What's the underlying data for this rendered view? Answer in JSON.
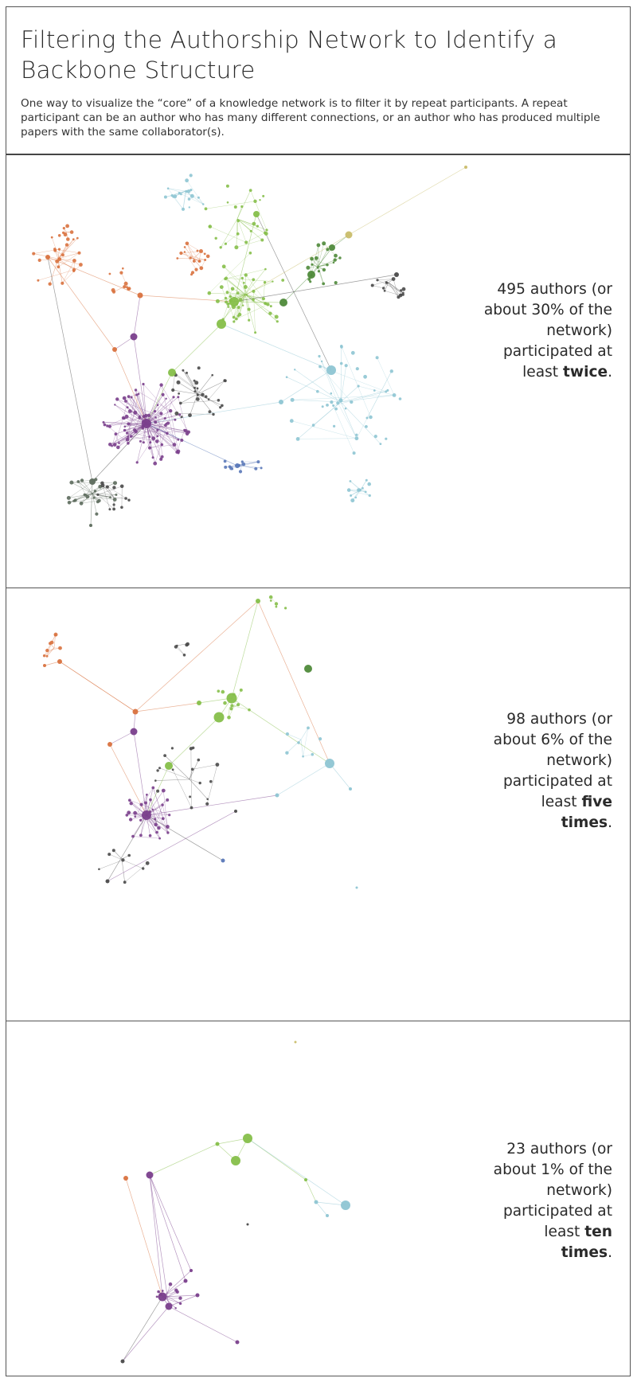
{
  "header": {
    "title": "Filtering the Authorship Network to Identify a Backbone Structure",
    "intro": "One way to visualize the “core” of a knowledge network is to filter it by repeat participants. A repeat participant can be an author who has many different connections, or an author who has produced multiple papers with the same collaborator(s)."
  },
  "colors": {
    "orange": "#d9723f",
    "purple": "#7a3f8c",
    "green": "#86bf4a",
    "dark_green": "#4f8a3a",
    "light_blue": "#8ec5d3",
    "blue": "#5a78b8",
    "olive": "#c9bd6a",
    "dark": "#4a4a4a",
    "slate": "#5d6b5d"
  },
  "panels": [
    {
      "authors_line": "495 authors",
      "percent_line": "(or about 30% of the network)",
      "participated_line": "participated at least",
      "frequency": "twice",
      "end": "."
    },
    {
      "authors_line": "98 authors",
      "percent_line": "(or about 6% of the network)",
      "participated_line": "participated at least",
      "frequency": "five times",
      "end": "."
    },
    {
      "authors_line": "23 authors",
      "percent_line": "(or about 1% of the network)",
      "participated_line": "participated at least",
      "frequency": "ten times",
      "end": "."
    }
  ]
}
